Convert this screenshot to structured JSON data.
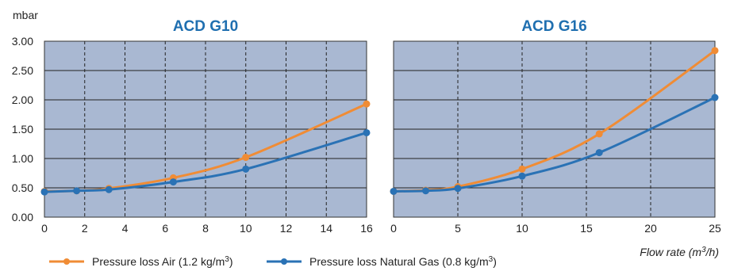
{
  "y_unit_label": "mbar",
  "x_axis_label_main": "Flow rate (m",
  "x_axis_label_sup": "3",
  "x_axis_label_tail": "/h)",
  "colors": {
    "plot_bg": "#a9b8d2",
    "air": "#f08c35",
    "gas": "#2a72b5",
    "title": "#1f6fb0",
    "frame": "#333333"
  },
  "legend": {
    "air_main": "Pressure loss Air (1.2 kg/m",
    "air_sup": "3",
    "air_tail": ")",
    "gas_main": "Pressure loss Natural Gas (0.8 kg/m",
    "gas_sup": "3",
    "gas_tail": ")"
  },
  "chart_data": [
    {
      "type": "line",
      "title": "ACD G10",
      "ylabel": "mbar",
      "xlim": [
        0,
        16
      ],
      "ylim": [
        0,
        3
      ],
      "x_ticks": [
        0,
        2,
        4,
        6,
        8,
        10,
        12,
        14,
        16
      ],
      "y_ticks": [
        0,
        0.5,
        1,
        1.5,
        2,
        2.5,
        3
      ],
      "y_tick_labels": [
        "0.00",
        "0.50",
        "1.00",
        "1.50",
        "2.00",
        "2.50",
        "3.00"
      ],
      "grid": true,
      "series": [
        {
          "name": "Pressure loss Air (1.2 kg/m3)",
          "x": [
            0,
            1.6,
            3.2,
            6.4,
            10,
            16
          ],
          "y": [
            0.44,
            0.45,
            0.49,
            0.67,
            1.02,
            1.93
          ]
        },
        {
          "name": "Pressure loss Natural Gas (0.8 kg/m3)",
          "x": [
            0,
            1.6,
            3.2,
            6.4,
            10,
            16
          ],
          "y": [
            0.43,
            0.45,
            0.47,
            0.6,
            0.82,
            1.44
          ]
        }
      ]
    },
    {
      "type": "line",
      "title": "ACD G16",
      "xlim": [
        0,
        25
      ],
      "ylim": [
        0,
        3
      ],
      "x_ticks": [
        0,
        5,
        10,
        15,
        20,
        25
      ],
      "y_ticks": [
        0,
        0.5,
        1,
        1.5,
        2,
        2.5,
        3
      ],
      "grid": true,
      "series": [
        {
          "name": "Pressure loss Air (1.2 kg/m3)",
          "x": [
            0,
            2.5,
            5,
            10,
            16,
            25
          ],
          "y": [
            0.44,
            0.46,
            0.52,
            0.82,
            1.42,
            2.84
          ]
        },
        {
          "name": "Pressure loss Natural Gas (0.8 kg/m3)",
          "x": [
            0,
            2.5,
            5,
            10,
            16,
            25
          ],
          "y": [
            0.44,
            0.45,
            0.49,
            0.7,
            1.1,
            2.04
          ]
        }
      ]
    }
  ]
}
